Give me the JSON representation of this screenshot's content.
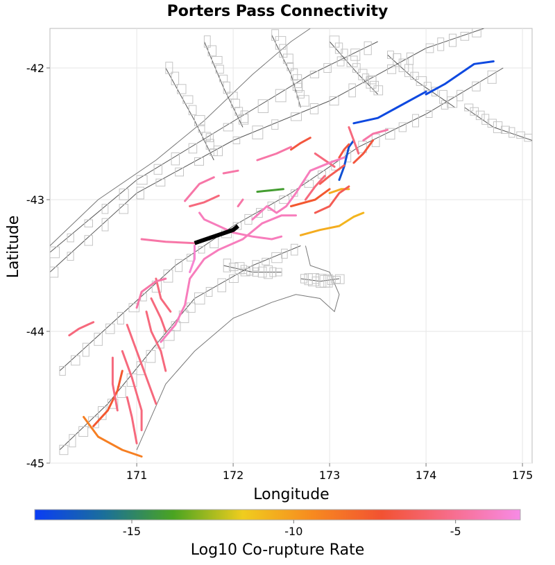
{
  "chart_data": {
    "type": "map",
    "title": "Porters Pass Connectivity",
    "xlabel": "Longitude",
    "ylabel": "Latitude",
    "xlim": [
      170.1,
      175.1
    ],
    "ylim": [
      -45.0,
      -41.7
    ],
    "xticks": [
      171,
      172,
      173,
      174,
      175
    ],
    "yticks": [
      -42,
      -43,
      -44,
      -45
    ],
    "grid": true,
    "colorbar": {
      "label": "Log10 Co-rupture Rate",
      "range": [
        -18,
        -3
      ],
      "ticks": [
        -15,
        -10,
        -5
      ],
      "colors": [
        "#0a3df5",
        "#1b6f9a",
        "#4aa421",
        "#f0cd1e",
        "#f78a1f",
        "#f25232",
        "#f76d8c",
        "#f78be6"
      ]
    },
    "source_fault": {
      "name": "Porters Pass",
      "color": "#000000",
      "path": [
        [
          171.6,
          -43.33
        ],
        [
          171.8,
          -43.28
        ],
        [
          172.0,
          -43.23
        ],
        [
          172.05,
          -43.2
        ]
      ]
    },
    "ruptures": [
      {
        "value": -17.5,
        "path": [
          [
            174.0,
            -42.2
          ],
          [
            174.2,
            -42.12
          ],
          [
            174.5,
            -41.97
          ],
          [
            174.7,
            -41.95
          ]
        ]
      },
      {
        "value": -17.5,
        "path": [
          [
            173.25,
            -42.42
          ],
          [
            173.5,
            -42.38
          ],
          [
            173.7,
            -42.3
          ],
          [
            174.0,
            -42.18
          ]
        ]
      },
      {
        "value": -17.2,
        "path": [
          [
            173.1,
            -42.85
          ],
          [
            173.15,
            -42.75
          ],
          [
            173.2,
            -42.6
          ],
          [
            173.25,
            -42.55
          ]
        ]
      },
      {
        "value": -14.0,
        "path": [
          [
            172.25,
            -42.94
          ],
          [
            172.38,
            -42.93
          ],
          [
            172.52,
            -42.92
          ]
        ]
      },
      {
        "value": -10.5,
        "path": [
          [
            172.7,
            -43.27
          ],
          [
            172.9,
            -43.23
          ],
          [
            173.1,
            -43.2
          ]
        ]
      },
      {
        "value": -10.8,
        "path": [
          [
            173.1,
            -43.2
          ],
          [
            173.25,
            -43.13
          ],
          [
            173.35,
            -43.1
          ]
        ]
      },
      {
        "value": -10.5,
        "path": [
          [
            173.0,
            -42.95
          ],
          [
            173.12,
            -42.92
          ],
          [
            173.2,
            -42.92
          ]
        ]
      },
      {
        "value": -9.0,
        "path": [
          [
            170.45,
            -44.65
          ],
          [
            170.6,
            -44.8
          ],
          [
            170.85,
            -44.9
          ],
          [
            171.05,
            -44.95
          ]
        ]
      },
      {
        "value": -7.5,
        "path": [
          [
            170.55,
            -44.72
          ],
          [
            170.7,
            -44.6
          ],
          [
            170.8,
            -44.45
          ],
          [
            170.85,
            -44.3
          ]
        ]
      },
      {
        "value": -7.5,
        "path": [
          [
            172.6,
            -43.05
          ],
          [
            172.85,
            -43.0
          ],
          [
            173.0,
            -42.92
          ]
        ]
      },
      {
        "value": -7.0,
        "path": [
          [
            172.6,
            -42.62
          ],
          [
            172.7,
            -42.57
          ],
          [
            172.8,
            -42.53
          ]
        ]
      },
      {
        "value": -7.0,
        "path": [
          [
            173.25,
            -42.72
          ],
          [
            173.35,
            -42.65
          ],
          [
            173.45,
            -42.55
          ]
        ]
      },
      {
        "value": -7.0,
        "path": [
          [
            173.1,
            -42.68
          ],
          [
            173.15,
            -42.62
          ],
          [
            173.2,
            -42.58
          ]
        ]
      },
      {
        "value": -6.5,
        "path": [
          [
            172.85,
            -43.1
          ],
          [
            173.0,
            -43.05
          ],
          [
            173.1,
            -42.95
          ],
          [
            173.2,
            -42.9
          ]
        ]
      },
      {
        "value": -6.5,
        "path": [
          [
            172.9,
            -42.88
          ],
          [
            173.0,
            -42.82
          ],
          [
            173.15,
            -42.74
          ]
        ]
      },
      {
        "value": -5.5,
        "path": [
          [
            170.9,
            -44.5
          ],
          [
            170.95,
            -44.65
          ],
          [
            171.0,
            -44.85
          ]
        ]
      },
      {
        "value": -5.5,
        "path": [
          [
            170.75,
            -44.2
          ],
          [
            170.75,
            -44.4
          ],
          [
            170.8,
            -44.6
          ]
        ]
      },
      {
        "value": -5.5,
        "path": [
          [
            170.85,
            -44.15
          ],
          [
            170.95,
            -44.35
          ],
          [
            171.05,
            -44.6
          ],
          [
            171.05,
            -44.75
          ]
        ]
      },
      {
        "value": -5.5,
        "path": [
          [
            170.9,
            -43.95
          ],
          [
            171.0,
            -44.15
          ],
          [
            171.1,
            -44.35
          ],
          [
            171.2,
            -44.55
          ]
        ]
      },
      {
        "value": -5.5,
        "path": [
          [
            171.1,
            -43.85
          ],
          [
            171.15,
            -44.0
          ],
          [
            171.25,
            -44.15
          ],
          [
            171.3,
            -44.3
          ]
        ]
      },
      {
        "value": -5.5,
        "path": [
          [
            171.15,
            -43.75
          ],
          [
            171.25,
            -43.9
          ],
          [
            171.3,
            -44.0
          ]
        ]
      },
      {
        "value": -5.5,
        "path": [
          [
            170.3,
            -44.03
          ],
          [
            170.4,
            -43.98
          ],
          [
            170.55,
            -43.93
          ]
        ]
      },
      {
        "value": -5.5,
        "path": [
          [
            171.2,
            -43.6
          ],
          [
            171.25,
            -43.75
          ],
          [
            171.35,
            -43.85
          ]
        ]
      },
      {
        "value": -5.5,
        "path": [
          [
            171.55,
            -43.05
          ],
          [
            171.7,
            -43.02
          ],
          [
            171.85,
            -42.97
          ]
        ]
      },
      {
        "value": -5.5,
        "path": [
          [
            172.75,
            -43.0
          ],
          [
            172.85,
            -42.9
          ],
          [
            172.95,
            -42.82
          ]
        ]
      },
      {
        "value": -5.5,
        "path": [
          [
            172.85,
            -42.65
          ],
          [
            172.95,
            -42.7
          ],
          [
            173.05,
            -42.75
          ]
        ]
      },
      {
        "value": -5.5,
        "path": [
          [
            173.2,
            -42.45
          ],
          [
            173.25,
            -42.55
          ],
          [
            173.3,
            -42.65
          ]
        ]
      },
      {
        "value": -4.5,
        "path": [
          [
            171.05,
            -43.3
          ],
          [
            171.3,
            -43.32
          ],
          [
            171.6,
            -43.33
          ]
        ]
      },
      {
        "value": -4.5,
        "path": [
          [
            171.5,
            -43.01
          ],
          [
            171.65,
            -42.88
          ],
          [
            171.8,
            -42.83
          ]
        ]
      },
      {
        "value": -4.5,
        "path": [
          [
            171.9,
            -42.8
          ],
          [
            172.05,
            -42.78
          ]
        ]
      },
      {
        "value": -4.5,
        "path": [
          [
            172.25,
            -42.7
          ],
          [
            172.45,
            -42.65
          ],
          [
            172.6,
            -42.6
          ]
        ]
      },
      {
        "value": -4.5,
        "path": [
          [
            173.35,
            -42.55
          ],
          [
            173.45,
            -42.5
          ],
          [
            173.6,
            -42.47
          ]
        ]
      },
      {
        "value": -4.5,
        "path": [
          [
            171.0,
            -43.82
          ],
          [
            171.05,
            -43.7
          ],
          [
            171.2,
            -43.62
          ],
          [
            171.3,
            -43.6
          ]
        ]
      },
      {
        "value": -4.5,
        "path": [
          [
            172.05,
            -43.05
          ],
          [
            172.1,
            -43.0
          ]
        ]
      },
      {
        "value": -4.0,
        "path": [
          [
            171.25,
            -44.08
          ],
          [
            171.4,
            -43.95
          ],
          [
            171.5,
            -43.8
          ],
          [
            171.55,
            -43.6
          ],
          [
            171.7,
            -43.45
          ],
          [
            171.85,
            -43.38
          ],
          [
            172.1,
            -43.3
          ],
          [
            172.3,
            -43.18
          ],
          [
            172.5,
            -43.12
          ],
          [
            172.65,
            -43.12
          ]
        ]
      },
      {
        "value": -4.0,
        "path": [
          [
            171.65,
            -43.1
          ],
          [
            171.7,
            -43.15
          ],
          [
            171.85,
            -43.2
          ],
          [
            172.0,
            -43.25
          ],
          [
            172.2,
            -43.28
          ],
          [
            172.4,
            -43.3
          ],
          [
            172.5,
            -43.28
          ]
        ]
      },
      {
        "value": -4.0,
        "path": [
          [
            172.2,
            -43.15
          ],
          [
            172.35,
            -43.05
          ],
          [
            172.45,
            -43.1
          ],
          [
            172.55,
            -43.05
          ],
          [
            172.65,
            -42.95
          ],
          [
            172.8,
            -42.78
          ],
          [
            173.0,
            -42.72
          ],
          [
            173.15,
            -42.68
          ]
        ]
      },
      {
        "value": -3.5,
        "path": [
          [
            171.6,
            -43.35
          ],
          [
            171.6,
            -43.45
          ],
          [
            171.55,
            -43.55
          ]
        ]
      }
    ]
  }
}
